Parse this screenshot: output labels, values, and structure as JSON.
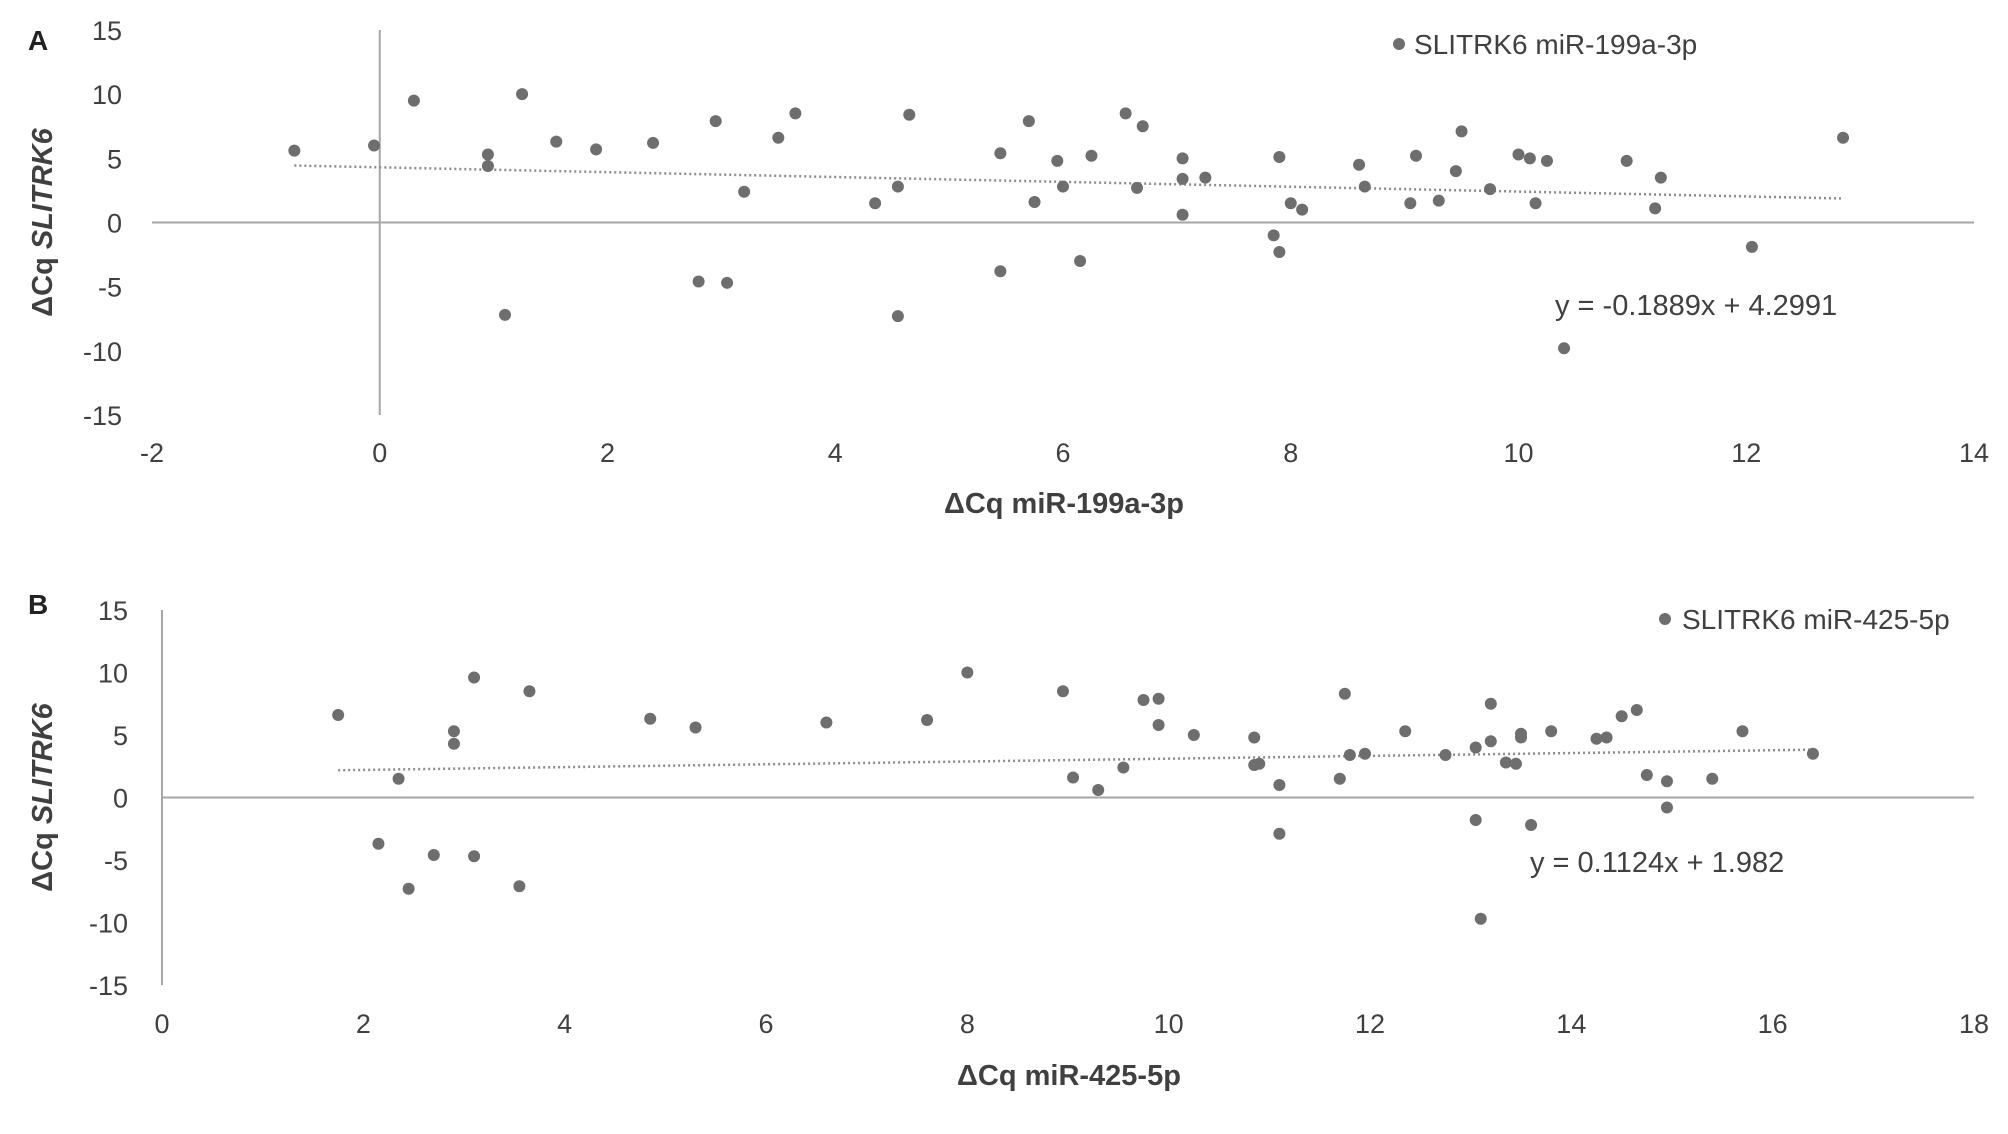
{
  "chart_data": [
    {
      "panel_label": "A",
      "type": "scatter",
      "xlabel": "ΔCq miR-199a-3p",
      "ylabel_prefix": "ΔCq ",
      "ylabel_gene": "SLITRK6",
      "xlim": [
        -2,
        14
      ],
      "ylim": [
        -15,
        15
      ],
      "x_ticks": [
        -2,
        0,
        2,
        4,
        6,
        8,
        10,
        12,
        14
      ],
      "y_ticks": [
        15,
        10,
        5,
        0,
        -5,
        -10,
        -15
      ],
      "legend": "SLITRK6 miR-199a-3p",
      "legend_position": "top-right",
      "trendline": {
        "slope": -0.1889,
        "intercept": 4.2991,
        "label": "y = -0.1889x + 4.2991",
        "style": "dotted"
      },
      "grid": false,
      "points": [
        [
          -0.75,
          5.6
        ],
        [
          -0.05,
          6.0
        ],
        [
          0.3,
          9.5
        ],
        [
          0.95,
          5.3
        ],
        [
          0.95,
          4.4
        ],
        [
          1.1,
          -7.2
        ],
        [
          1.25,
          10.0
        ],
        [
          1.55,
          6.3
        ],
        [
          1.9,
          5.7
        ],
        [
          2.4,
          6.2
        ],
        [
          2.8,
          -4.6
        ],
        [
          2.95,
          7.9
        ],
        [
          3.05,
          -4.7
        ],
        [
          3.2,
          2.4
        ],
        [
          3.5,
          6.6
        ],
        [
          3.65,
          8.5
        ],
        [
          4.35,
          1.5
        ],
        [
          4.55,
          2.8
        ],
        [
          4.55,
          -7.3
        ],
        [
          4.65,
          8.4
        ],
        [
          5.45,
          5.4
        ],
        [
          5.45,
          -3.8
        ],
        [
          5.7,
          7.9
        ],
        [
          5.75,
          1.6
        ],
        [
          5.95,
          4.8
        ],
        [
          6.0,
          2.8
        ],
        [
          6.15,
          -3.0
        ],
        [
          6.25,
          5.2
        ],
        [
          6.55,
          8.5
        ],
        [
          6.65,
          2.7
        ],
        [
          6.7,
          7.5
        ],
        [
          7.05,
          5.0
        ],
        [
          7.05,
          3.4
        ],
        [
          7.05,
          0.6
        ],
        [
          7.25,
          3.5
        ],
        [
          7.85,
          -1.0
        ],
        [
          7.9,
          -2.3
        ],
        [
          7.9,
          5.1
        ],
        [
          8.0,
          1.5
        ],
        [
          8.1,
          1.0
        ],
        [
          8.6,
          4.5
        ],
        [
          8.65,
          2.8
        ],
        [
          9.05,
          1.5
        ],
        [
          9.1,
          5.2
        ],
        [
          9.3,
          1.7
        ],
        [
          9.45,
          4.0
        ],
        [
          9.5,
          7.1
        ],
        [
          9.75,
          2.6
        ],
        [
          10.0,
          5.3
        ],
        [
          10.1,
          5.0
        ],
        [
          10.15,
          1.5
        ],
        [
          10.25,
          4.8
        ],
        [
          10.4,
          -9.8
        ],
        [
          10.95,
          4.8
        ],
        [
          11.2,
          1.1
        ],
        [
          11.25,
          3.5
        ],
        [
          12.05,
          -1.9
        ],
        [
          12.85,
          6.6
        ]
      ]
    },
    {
      "panel_label": "B",
      "type": "scatter",
      "xlabel": "ΔCq miR-425-5p",
      "ylabel_prefix": "ΔCq ",
      "ylabel_gene": "SLITRK6",
      "xlim": [
        0,
        18
      ],
      "ylim": [
        -15,
        15
      ],
      "x_ticks": [
        0,
        2,
        4,
        6,
        8,
        10,
        12,
        14,
        16,
        18
      ],
      "y_ticks": [
        15,
        10,
        5,
        0,
        -5,
        -10,
        -15
      ],
      "legend": "SLITRK6 miR-425-5p",
      "legend_position": "top-right",
      "trendline": {
        "slope": 0.1124,
        "intercept": 1.982,
        "label": "y = 0.1124x + 1.982",
        "style": "dotted"
      },
      "grid": false,
      "points": [
        [
          1.75,
          6.6
        ],
        [
          2.15,
          -3.7
        ],
        [
          2.35,
          1.5
        ],
        [
          2.45,
          -7.3
        ],
        [
          2.7,
          -4.6
        ],
        [
          2.9,
          5.3
        ],
        [
          2.9,
          4.3
        ],
        [
          3.1,
          9.6
        ],
        [
          3.1,
          -4.7
        ],
        [
          3.55,
          -7.1
        ],
        [
          3.65,
          8.5
        ],
        [
          4.85,
          6.3
        ],
        [
          5.3,
          5.6
        ],
        [
          6.6,
          6.0
        ],
        [
          7.6,
          6.2
        ],
        [
          8.0,
          10.0
        ],
        [
          8.95,
          8.5
        ],
        [
          9.05,
          1.6
        ],
        [
          9.3,
          0.6
        ],
        [
          9.55,
          2.4
        ],
        [
          9.75,
          7.8
        ],
        [
          9.9,
          5.8
        ],
        [
          9.9,
          7.9
        ],
        [
          10.25,
          5.0
        ],
        [
          10.85,
          2.6
        ],
        [
          10.85,
          4.8
        ],
        [
          10.9,
          2.7
        ],
        [
          11.1,
          1.0
        ],
        [
          11.1,
          -2.9
        ],
        [
          11.7,
          1.5
        ],
        [
          11.75,
          8.3
        ],
        [
          11.8,
          3.4
        ],
        [
          11.95,
          3.5
        ],
        [
          12.35,
          5.3
        ],
        [
          12.75,
          3.4
        ],
        [
          13.05,
          4.0
        ],
        [
          13.05,
          -1.8
        ],
        [
          13.1,
          -9.7
        ],
        [
          13.2,
          4.5
        ],
        [
          13.2,
          7.5
        ],
        [
          13.35,
          2.8
        ],
        [
          13.45,
          2.7
        ],
        [
          13.5,
          4.8
        ],
        [
          13.5,
          5.1
        ],
        [
          13.6,
          -2.2
        ],
        [
          13.8,
          5.3
        ],
        [
          14.25,
          4.7
        ],
        [
          14.35,
          4.8
        ],
        [
          14.5,
          6.5
        ],
        [
          14.65,
          7.0
        ],
        [
          14.75,
          1.8
        ],
        [
          14.95,
          1.3
        ],
        [
          14.95,
          -0.8
        ],
        [
          15.4,
          1.5
        ],
        [
          15.7,
          5.3
        ],
        [
          16.4,
          3.5
        ]
      ]
    }
  ]
}
